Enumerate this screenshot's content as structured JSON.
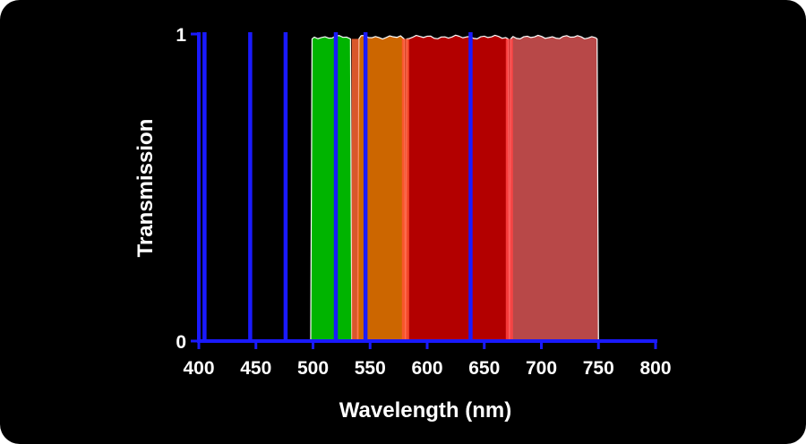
{
  "chart_data": {
    "type": "area",
    "xlabel": "Wavelength (nm)",
    "ylabel": "Transmission",
    "xlim": [
      400,
      800
    ],
    "ylim": [
      0,
      1
    ],
    "x_ticks": [
      "400",
      "450",
      "500",
      "550",
      "600",
      "650",
      "700",
      "750",
      "800"
    ],
    "y_ticks": [
      "0",
      "1"
    ],
    "grid": false,
    "colors": {
      "background": "#000000",
      "axis": "#1a1aff",
      "text": "#ffffff",
      "band_outline": "#ffffff"
    },
    "bands": [
      {
        "start": 498,
        "end": 534,
        "transmission": 0.99,
        "color": "#00b400"
      },
      {
        "start": 539,
        "end": 581,
        "transmission": 0.99,
        "color": "#cc6600"
      },
      {
        "start": 581,
        "end": 672,
        "transmission": 0.99,
        "color": "#b30000"
      },
      {
        "start": 672,
        "end": 750,
        "transmission": 0.99,
        "color": "#b84848"
      }
    ],
    "edge_glow": [
      {
        "at": 537,
        "color": "#ff6633"
      },
      {
        "at": 581,
        "color": "#ff5533"
      },
      {
        "at": 672,
        "color": "#ff4444"
      }
    ],
    "laser_lines": [
      405,
      445,
      476,
      520,
      546,
      638
    ]
  }
}
